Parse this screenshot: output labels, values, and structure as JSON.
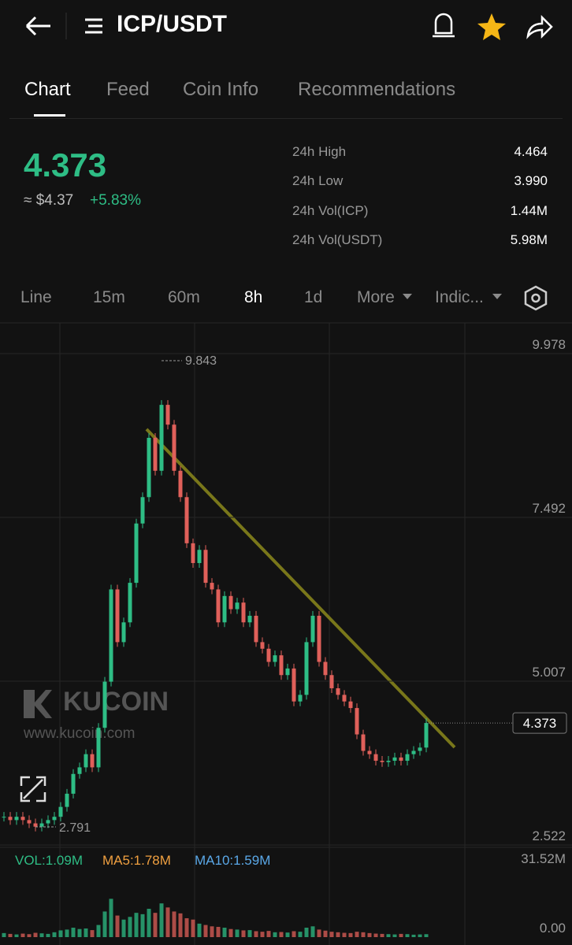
{
  "header": {
    "title": "ICP/USDT"
  },
  "tabs": [
    "Chart",
    "Feed",
    "Coin Info",
    "Recommendations"
  ],
  "price": {
    "last": "4.373",
    "usd": "≈ $4.37",
    "change": "+5.83%"
  },
  "stats": [
    [
      "24h High",
      "4.464"
    ],
    [
      "24h Low",
      "3.990"
    ],
    [
      "24h Vol(ICP)",
      "1.44M"
    ],
    [
      "24h Vol(USDT)",
      "5.98M"
    ]
  ],
  "intervals": [
    "Line",
    "15m",
    "60m",
    "8h",
    "1d",
    "More",
    "Indic..."
  ],
  "watermark": {
    "brand": "KUCOIN",
    "site": "www.kucoin.com"
  },
  "chart": {
    "ylim": [
      2.522,
      9.978
    ],
    "yticks": [
      9.978,
      7.492,
      5.007,
      2.522
    ],
    "high_label": "9.843",
    "low_label": "2.791",
    "last_label": "4.373",
    "closes": [
      2.95,
      2.9,
      2.95,
      2.9,
      2.85,
      2.8,
      2.85,
      2.9,
      2.95,
      3.1,
      3.3,
      3.6,
      3.7,
      3.9,
      3.7,
      4.3,
      5.0,
      6.4,
      5.6,
      5.9,
      6.5,
      7.4,
      7.8,
      8.7,
      8.2,
      9.2,
      8.9,
      8.2,
      7.8,
      7.1,
      6.8,
      7.0,
      6.5,
      6.4,
      5.9,
      6.3,
      6.1,
      6.2,
      5.9,
      6.0,
      5.6,
      5.5,
      5.3,
      5.4,
      5.1,
      5.2,
      4.7,
      4.8,
      5.6,
      6.0,
      5.3,
      5.1,
      4.9,
      4.8,
      4.7,
      4.6,
      4.2,
      3.95,
      3.9,
      3.8,
      3.78,
      3.8,
      3.85,
      3.8,
      3.9,
      3.95,
      4.0,
      4.373
    ]
  },
  "volume": {
    "legend": [
      "VOL:1.09M",
      "MA5:1.78M",
      "MA10:1.59M"
    ],
    "ylim": [
      0,
      31.52
    ],
    "yticks": [
      {
        "value": 31.52,
        "label": "31.52M"
      },
      {
        "value": 0,
        "label": "0.00"
      }
    ],
    "values": [
      1.5,
      1.2,
      1.0,
      1.3,
      1.1,
      1.6,
      1.4,
      1.2,
      1.8,
      2.5,
      2.8,
      3.5,
      3.0,
      3.2,
      2.6,
      4.5,
      9.5,
      14.2,
      8.0,
      6.5,
      7.5,
      9.0,
      8.5,
      10.5,
      9.0,
      12.5,
      11.0,
      9.5,
      8.8,
      7.0,
      6.5,
      5.0,
      4.5,
      4.0,
      3.8,
      3.5,
      3.0,
      2.8,
      2.5,
      2.6,
      2.2,
      2.0,
      2.3,
      1.8,
      1.9,
      1.7,
      2.2,
      2.0,
      3.5,
      4.0,
      2.8,
      2.4,
      2.0,
      1.8,
      1.6,
      1.5,
      2.0,
      1.8,
      1.5,
      1.3,
      1.2,
      1.1,
      1.0,
      1.2,
      1.1,
      0.9,
      1.0,
      1.09
    ]
  }
}
